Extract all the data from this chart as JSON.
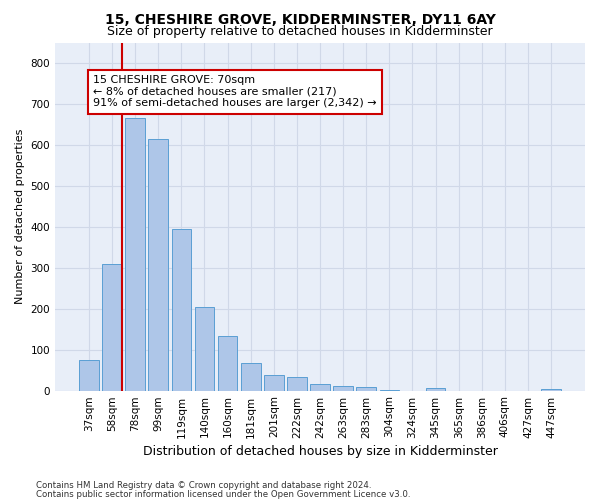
{
  "title": "15, CHESHIRE GROVE, KIDDERMINSTER, DY11 6AY",
  "subtitle": "Size of property relative to detached houses in Kidderminster",
  "xlabel": "Distribution of detached houses by size in Kidderminster",
  "ylabel": "Number of detached properties",
  "footnote1": "Contains HM Land Registry data © Crown copyright and database right 2024.",
  "footnote2": "Contains public sector information licensed under the Open Government Licence v3.0.",
  "categories": [
    "37sqm",
    "58sqm",
    "78sqm",
    "99sqm",
    "119sqm",
    "140sqm",
    "160sqm",
    "181sqm",
    "201sqm",
    "222sqm",
    "242sqm",
    "263sqm",
    "283sqm",
    "304sqm",
    "324sqm",
    "345sqm",
    "365sqm",
    "386sqm",
    "406sqm",
    "427sqm",
    "447sqm"
  ],
  "values": [
    75,
    310,
    665,
    615,
    395,
    203,
    133,
    68,
    38,
    32,
    17,
    12,
    8,
    2,
    0,
    7,
    0,
    0,
    0,
    0,
    5
  ],
  "bar_color": "#aec6e8",
  "bar_edge_color": "#5a9fd4",
  "vline_x_index": 1,
  "vline_color": "#cc0000",
  "annotation_text": "15 CHESHIRE GROVE: 70sqm\n← 8% of detached houses are smaller (217)\n91% of semi-detached houses are larger (2,342) →",
  "annotation_box_color": "#ffffff",
  "annotation_box_edge": "#cc0000",
  "ylim": [
    0,
    850
  ],
  "yticks": [
    0,
    100,
    200,
    300,
    400,
    500,
    600,
    700,
    800
  ],
  "grid_color": "#d0d8e8",
  "bg_color": "#e8eef8",
  "fig_bg_color": "#ffffff",
  "title_fontsize": 10,
  "subtitle_fontsize": 9,
  "annotation_fontsize": 8,
  "tick_fontsize": 7.5,
  "ylabel_fontsize": 8,
  "xlabel_fontsize": 9
}
